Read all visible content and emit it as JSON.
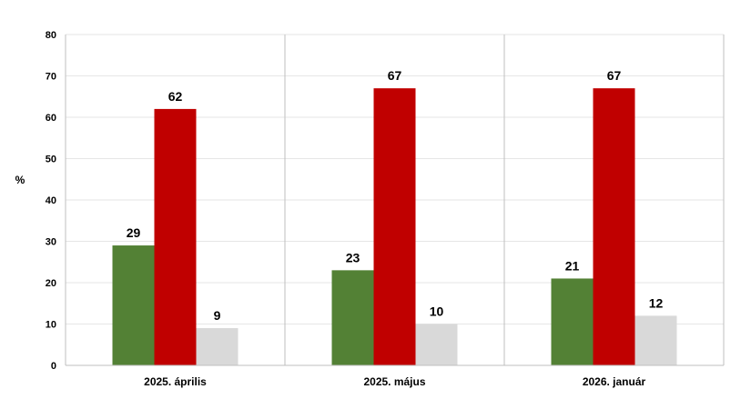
{
  "chart_data": {
    "type": "bar",
    "title": "",
    "xlabel": "",
    "ylabel": "%",
    "ylim": [
      0,
      80
    ],
    "yticks": [
      0,
      10,
      20,
      30,
      40,
      50,
      60,
      70,
      80
    ],
    "categories": [
      "2025. április",
      "2025. május",
      "2026. január"
    ],
    "series": [
      {
        "color": "#538135",
        "values": [
          29,
          23,
          21
        ]
      },
      {
        "color": "#c00000",
        "values": [
          62,
          67,
          67
        ]
      },
      {
        "color": "#d9d9d9",
        "values": [
          9,
          10,
          12
        ]
      }
    ],
    "grid": true,
    "data_labels": true,
    "legend": false
  }
}
